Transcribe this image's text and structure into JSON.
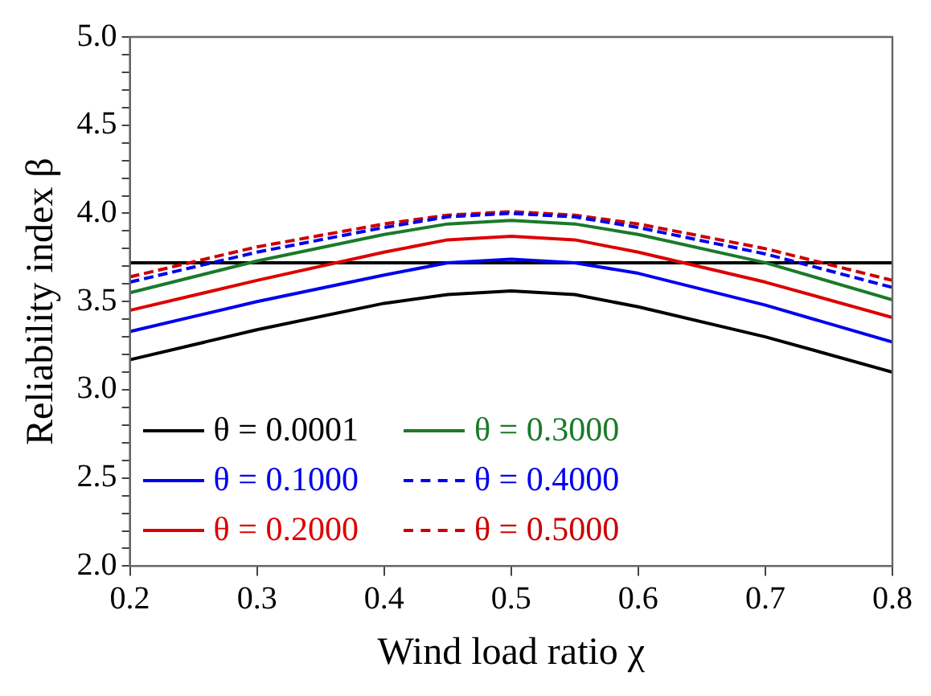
{
  "chart_data": {
    "type": "line",
    "xlabel": "Wind load ratio χ",
    "ylabel": "Reliability index β",
    "x": [
      0.2,
      0.3,
      0.4,
      0.45,
      0.5,
      0.55,
      0.6,
      0.7,
      0.8
    ],
    "series": [
      {
        "name": "θ = 0.0001",
        "color": "#000000",
        "values": [
          3.17,
          3.34,
          3.49,
          3.54,
          3.56,
          3.54,
          3.47,
          3.3,
          3.1
        ]
      },
      {
        "name": "θ = 0.1000",
        "color": "#0000ee",
        "values": [
          3.33,
          3.5,
          3.65,
          3.72,
          3.74,
          3.72,
          3.66,
          3.48,
          3.27
        ]
      },
      {
        "name": "θ = 0.2000",
        "color": "#dd0000",
        "values": [
          3.45,
          3.62,
          3.78,
          3.85,
          3.87,
          3.85,
          3.78,
          3.61,
          3.41
        ]
      },
      {
        "name": "θ = 0.3000",
        "color": "#1a7a2a",
        "values": [
          3.55,
          3.73,
          3.88,
          3.94,
          3.96,
          3.94,
          3.88,
          3.72,
          3.51
        ]
      },
      {
        "name": "θ = 0.4000",
        "color": "#0000ee",
        "line_style": "dashed",
        "values": [
          3.61,
          3.78,
          3.92,
          3.98,
          4.0,
          3.98,
          3.92,
          3.77,
          3.58
        ]
      },
      {
        "name": "θ = 0.5000",
        "color": "#cc0000",
        "line_style": "dashed",
        "values": [
          3.64,
          3.81,
          3.94,
          3.99,
          4.01,
          3.99,
          3.94,
          3.8,
          3.62
        ]
      }
    ],
    "ref_lines": [
      {
        "axis": "y",
        "value": 3.72,
        "color": "#000000"
      }
    ],
    "xlim": [
      0.2,
      0.8
    ],
    "xticks": [
      0.2,
      0.3,
      0.4,
      0.5,
      0.6,
      0.7,
      0.8
    ],
    "ylim": [
      2,
      5
    ],
    "yticks": [
      {
        "value": 2,
        "label": "2.0"
      },
      {
        "value": 2.1,
        "label": null
      },
      {
        "value": 2.2,
        "label": null
      },
      {
        "value": 2.3,
        "label": null
      },
      {
        "value": 2.4,
        "label": null
      },
      {
        "value": 2.5,
        "label": "2.5"
      },
      {
        "value": 2.6,
        "label": null
      },
      {
        "value": 2.7,
        "label": null
      },
      {
        "value": 2.8,
        "label": null
      },
      {
        "value": 2.9,
        "label": null
      },
      {
        "value": 3,
        "label": "3.0"
      },
      {
        "value": 3.1,
        "label": null
      },
      {
        "value": 3.2,
        "label": null
      },
      {
        "value": 3.3,
        "label": null
      },
      {
        "value": 3.4,
        "label": null
      },
      {
        "value": 3.5,
        "label": "3.5"
      },
      {
        "value": 3.6,
        "label": null
      },
      {
        "value": 3.7,
        "label": null
      },
      {
        "value": 3.8,
        "label": null
      },
      {
        "value": 3.9,
        "label": null
      },
      {
        "value": 4,
        "label": "4.0"
      },
      {
        "value": 4.1,
        "label": null
      },
      {
        "value": 4.2,
        "label": null
      },
      {
        "value": 4.3,
        "label": null
      },
      {
        "value": 4.4,
        "label": null
      },
      {
        "value": 4.5,
        "label": "4.5"
      },
      {
        "value": 4.6,
        "label": null
      },
      {
        "value": 4.7,
        "label": null
      },
      {
        "value": 4.8,
        "label": null
      },
      {
        "value": 4.9,
        "label": null
      },
      {
        "value": 5,
        "label": "5.0"
      }
    ],
    "grid": false,
    "legend": "bottom left",
    "marker": "none",
    "line_style": "solid"
  }
}
